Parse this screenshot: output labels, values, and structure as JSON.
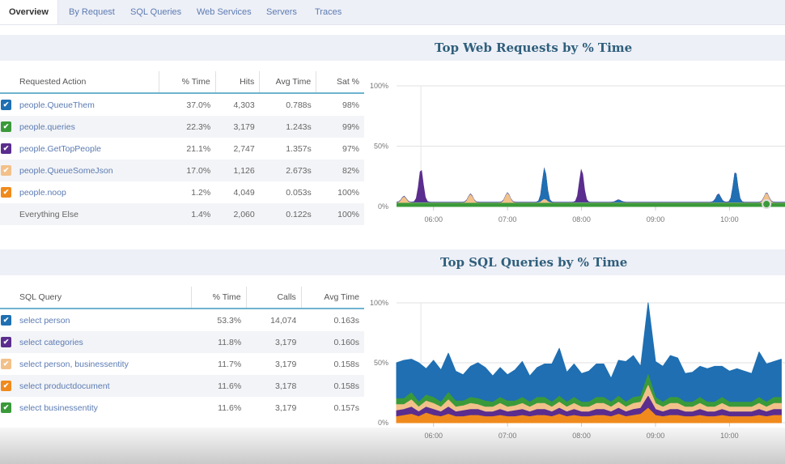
{
  "tabs": [
    {
      "label": "Overview",
      "active": true
    },
    {
      "label": "By Request",
      "active": false
    },
    {
      "label": "SQL Queries",
      "active": false
    },
    {
      "label": "Web Services",
      "active": false
    },
    {
      "label": "Servers",
      "active": false
    },
    {
      "label": "Traces",
      "active": false
    }
  ],
  "web": {
    "title": "Top Web Requests by % Time",
    "columns": [
      "Requested Action",
      "% Time",
      "Hits",
      "Avg Time",
      "Sat %"
    ],
    "rows": [
      {
        "name": "people.QueueThem",
        "pct": "37.0%",
        "hits": "4,303",
        "avg": "0.788s",
        "sat": "98%",
        "color": "#1f6fb2",
        "checked": true
      },
      {
        "name": "people.queries",
        "pct": "22.3%",
        "hits": "3,179",
        "avg": "1.243s",
        "sat": "99%",
        "color": "#3a9a3a",
        "checked": true
      },
      {
        "name": "people.GetTopPeople",
        "pct": "21.1%",
        "hits": "2,747",
        "avg": "1.357s",
        "sat": "97%",
        "color": "#5b2d8e",
        "checked": true
      },
      {
        "name": "people.QueueSomeJson",
        "pct": "17.0%",
        "hits": "1,126",
        "avg": "2.673s",
        "sat": "82%",
        "color": "#f2c18a",
        "checked": true
      },
      {
        "name": "people.noop",
        "pct": "1.2%",
        "hits": "4,049",
        "avg": "0.053s",
        "sat": "100%",
        "color": "#f08a1c",
        "checked": true
      },
      {
        "name": "Everything Else",
        "pct": "1.4%",
        "hits": "2,060",
        "avg": "0.122s",
        "sat": "100%",
        "color": "",
        "checked": false
      }
    ]
  },
  "sql": {
    "title": "Top SQL Queries by % Time",
    "columns": [
      "SQL Query",
      "% Time",
      "Calls",
      "Avg Time"
    ],
    "rows": [
      {
        "name": "select person",
        "pct": "53.3%",
        "calls": "14,074",
        "avg": "0.163s",
        "color": "#1f6fb2",
        "checked": true
      },
      {
        "name": "select categories",
        "pct": "11.8%",
        "calls": "3,179",
        "avg": "0.160s",
        "color": "#5b2d8e",
        "checked": true
      },
      {
        "name": "select person, businessentity",
        "pct": "11.7%",
        "calls": "3,179",
        "avg": "0.158s",
        "color": "#f2c18a",
        "checked": true
      },
      {
        "name": "select productdocument",
        "pct": "11.6%",
        "calls": "3,178",
        "avg": "0.158s",
        "color": "#f08a1c",
        "checked": true
      },
      {
        "name": "select businessentity",
        "pct": "11.6%",
        "calls": "3,179",
        "avg": "0.157s",
        "color": "#3a9a3a",
        "checked": true
      }
    ]
  },
  "chart_data": [
    {
      "type": "area",
      "title": "Top Web Requests by % Time",
      "xlabel": "",
      "ylabel": "",
      "ylim": [
        0,
        100
      ],
      "yticks": [
        "0%",
        "50%",
        "100%"
      ],
      "xticks": [
        "06:00",
        "07:00",
        "08:00",
        "09:00",
        "10:00"
      ],
      "x_range_hours": [
        5.5,
        10.75
      ],
      "grid": true,
      "stacked": true,
      "series": [
        {
          "name": "people.noop",
          "color": "#f08a1c",
          "x": [
            5.5,
            10.75
          ],
          "values": [
            1,
            1
          ]
        },
        {
          "name": "people.queries",
          "color": "#3a9a3a",
          "x": [
            5.5,
            10.75
          ],
          "values": [
            2,
            2
          ]
        },
        {
          "name": "people.QueueThem",
          "color": "#1f6fb2",
          "peaks": [
            {
              "x": 7.5,
              "value": 26
            },
            {
              "x": 9.85,
              "value": 7
            },
            {
              "x": 10.08,
              "value": 26
            },
            {
              "x": 8.5,
              "value": 2
            }
          ]
        },
        {
          "name": "people.GetTopPeople",
          "color": "#5b2d8e",
          "peaks": [
            {
              "x": 5.83,
              "value": 28
            },
            {
              "x": 8.0,
              "value": 28
            }
          ]
        },
        {
          "name": "people.QueueSomeJson",
          "color": "#f2c18a",
          "peaks": [
            {
              "x": 5.6,
              "value": 5
            },
            {
              "x": 6.5,
              "value": 7
            },
            {
              "x": 7.0,
              "value": 8
            },
            {
              "x": 7.5,
              "value": 3
            },
            {
              "x": 10.5,
              "value": 8
            }
          ]
        }
      ]
    },
    {
      "type": "area",
      "title": "Top SQL Queries by % Time",
      "xlabel": "",
      "ylabel": "",
      "ylim": [
        0,
        100
      ],
      "yticks": [
        "0%",
        "50%",
        "100%"
      ],
      "xticks": [
        "06:00",
        "07:00",
        "08:00",
        "09:00",
        "10:00"
      ],
      "x_range_hours": [
        5.5,
        10.75
      ],
      "grid": true,
      "stacked": true,
      "x": [
        5.5,
        5.6,
        5.7,
        5.8,
        5.9,
        6.0,
        6.1,
        6.2,
        6.3,
        6.4,
        6.5,
        6.6,
        6.7,
        6.8,
        6.9,
        7.0,
        7.1,
        7.2,
        7.3,
        7.4,
        7.5,
        7.6,
        7.7,
        7.8,
        7.9,
        8.0,
        8.1,
        8.2,
        8.3,
        8.4,
        8.5,
        8.6,
        8.7,
        8.8,
        8.9,
        9.0,
        9.1,
        9.2,
        9.3,
        9.4,
        9.5,
        9.6,
        9.7,
        9.8,
        9.9,
        10.0,
        10.1,
        10.2,
        10.3,
        10.4,
        10.5,
        10.6,
        10.7
      ],
      "series": [
        {
          "name": "select productdocument",
          "color": "#f08a1c",
          "values": [
            5,
            6,
            7,
            5,
            8,
            6,
            5,
            7,
            5,
            5,
            6,
            6,
            5,
            5,
            6,
            5,
            5,
            6,
            5,
            6,
            6,
            5,
            7,
            5,
            6,
            5,
            5,
            6,
            6,
            5,
            7,
            5,
            6,
            7,
            12,
            6,
            5,
            6,
            6,
            5,
            5,
            6,
            5,
            5,
            6,
            5,
            5,
            5,
            5,
            6,
            5,
            6,
            6
          ]
        },
        {
          "name": "select categories",
          "color": "#5b2d8e",
          "values": [
            5,
            5,
            6,
            4,
            5,
            5,
            4,
            6,
            4,
            5,
            5,
            5,
            4,
            4,
            5,
            4,
            5,
            5,
            4,
            5,
            5,
            4,
            5,
            4,
            5,
            4,
            4,
            5,
            5,
            4,
            5,
            4,
            5,
            5,
            10,
            5,
            4,
            5,
            5,
            4,
            4,
            5,
            4,
            4,
            5,
            4,
            4,
            4,
            4,
            5,
            4,
            5,
            5
          ]
        },
        {
          "name": "select person, businessentity",
          "color": "#f2c18a",
          "values": [
            5,
            4,
            6,
            4,
            5,
            5,
            4,
            6,
            4,
            4,
            5,
            4,
            4,
            4,
            5,
            4,
            4,
            5,
            4,
            5,
            5,
            4,
            5,
            4,
            5,
            4,
            4,
            5,
            5,
            4,
            5,
            4,
            5,
            5,
            9,
            5,
            4,
            5,
            5,
            4,
            4,
            5,
            4,
            4,
            5,
            4,
            4,
            4,
            4,
            5,
            4,
            5,
            5
          ]
        },
        {
          "name": "select businessentity",
          "color": "#3a9a3a",
          "values": [
            5,
            5,
            6,
            4,
            5,
            5,
            4,
            6,
            5,
            4,
            5,
            5,
            5,
            4,
            5,
            5,
            4,
            5,
            4,
            5,
            5,
            4,
            5,
            4,
            5,
            4,
            4,
            5,
            5,
            4,
            5,
            4,
            5,
            5,
            9,
            5,
            4,
            5,
            5,
            4,
            4,
            5,
            4,
            4,
            5,
            4,
            4,
            4,
            4,
            5,
            4,
            5,
            5
          ]
        },
        {
          "name": "select person",
          "color": "#1f6fb2",
          "values": [
            30,
            32,
            28,
            33,
            22,
            31,
            27,
            33,
            25,
            22,
            26,
            30,
            28,
            22,
            25,
            22,
            26,
            30,
            22,
            25,
            28,
            32,
            40,
            25,
            28,
            24,
            26,
            28,
            28,
            20,
            30,
            34,
            35,
            25,
            60,
            30,
            30,
            35,
            33,
            24,
            25,
            26,
            28,
            30,
            26,
            26,
            28,
            26,
            24,
            38,
            32,
            30,
            32
          ]
        }
      ]
    }
  ]
}
